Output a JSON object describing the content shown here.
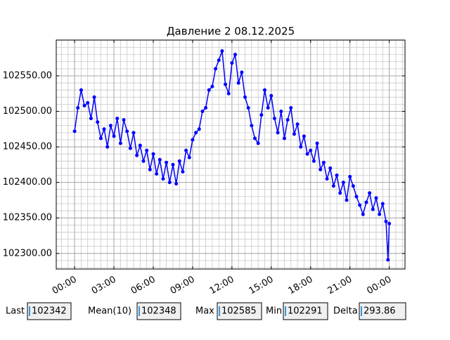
{
  "chart_data": {
    "type": "line",
    "title": "Давление 2 08.12.2025",
    "color": "#0000ff",
    "grid": true,
    "x": [
      0,
      0.25,
      0.5,
      0.75,
      1,
      1.25,
      1.5,
      1.75,
      2,
      2.25,
      2.5,
      2.75,
      3,
      3.25,
      3.5,
      3.75,
      4,
      4.25,
      4.5,
      4.75,
      5,
      5.25,
      5.5,
      5.75,
      6,
      6.25,
      6.5,
      6.75,
      7,
      7.25,
      7.5,
      7.75,
      8,
      8.25,
      8.5,
      8.75,
      9,
      9.25,
      9.5,
      9.75,
      10,
      10.25,
      10.5,
      10.75,
      11,
      11.25,
      11.5,
      11.75,
      12,
      12.25,
      12.5,
      12.75,
      13,
      13.25,
      13.5,
      13.75,
      14,
      14.25,
      14.5,
      14.75,
      15,
      15.25,
      15.5,
      15.75,
      16,
      16.25,
      16.5,
      16.75,
      17,
      17.25,
      17.5,
      17.75,
      18,
      18.25,
      18.5,
      18.75,
      19,
      19.25,
      19.5,
      19.75,
      20,
      20.25,
      20.5,
      20.75,
      21,
      21.25,
      21.5,
      21.75,
      22,
      22.25,
      22.5,
      22.75,
      23,
      23.25,
      23.5,
      23.75,
      23.9,
      24
    ],
    "values": [
      102472,
      102505,
      102530,
      102508,
      102512,
      102490,
      102520,
      102485,
      102462,
      102475,
      102450,
      102480,
      102465,
      102490,
      102455,
      102488,
      102472,
      102448,
      102470,
      102438,
      102452,
      102430,
      102445,
      102418,
      102440,
      102412,
      102432,
      102405,
      102428,
      102400,
      102425,
      102398,
      102430,
      102415,
      102445,
      102435,
      102460,
      102470,
      102475,
      102500,
      102505,
      102530,
      102535,
      102560,
      102572,
      102585,
      102538,
      102525,
      102568,
      102580,
      102540,
      102555,
      102520,
      102505,
      102480,
      102462,
      102455,
      102495,
      102530,
      102505,
      102522,
      102490,
      102470,
      102500,
      102462,
      102488,
      102505,
      102468,
      102482,
      102450,
      102465,
      102440,
      102445,
      102430,
      102455,
      102418,
      102428,
      102405,
      102420,
      102395,
      102410,
      102385,
      102400,
      102375,
      102408,
      102395,
      102380,
      102368,
      102355,
      102372,
      102385,
      102362,
      102378,
      102355,
      102370,
      102345,
      102291,
      102342
    ],
    "xlim": [
      -1.4,
      25.2
    ],
    "ylim": [
      102278,
      102600.4
    ],
    "xticks": [
      {
        "value": 0,
        "label": "00:00"
      },
      {
        "value": 3,
        "label": "03:00"
      },
      {
        "value": 6,
        "label": "06:00"
      },
      {
        "value": 9,
        "label": "09:00"
      },
      {
        "value": 12,
        "label": "12:00"
      },
      {
        "value": 15,
        "label": "15:00"
      },
      {
        "value": 18,
        "label": "18:00"
      },
      {
        "value": 21,
        "label": "21:00"
      },
      {
        "value": 24,
        "label": "00:00"
      }
    ],
    "yticks": [
      {
        "value": 102300,
        "label": "102300.00"
      },
      {
        "value": 102350,
        "label": "102350.00"
      },
      {
        "value": 102400,
        "label": "102400.00"
      },
      {
        "value": 102450,
        "label": "102450.00"
      },
      {
        "value": 102500,
        "label": "102500.00"
      },
      {
        "value": 102550,
        "label": "102550.00"
      }
    ]
  },
  "stats": [
    {
      "label": "Last",
      "value": 102342
    },
    {
      "label": "Mean(10)",
      "value": 102348
    },
    {
      "label": "Max",
      "value": 102585
    },
    {
      "label": "Min",
      "value": 102291
    },
    {
      "label": "Delta",
      "value": 293.86
    }
  ]
}
